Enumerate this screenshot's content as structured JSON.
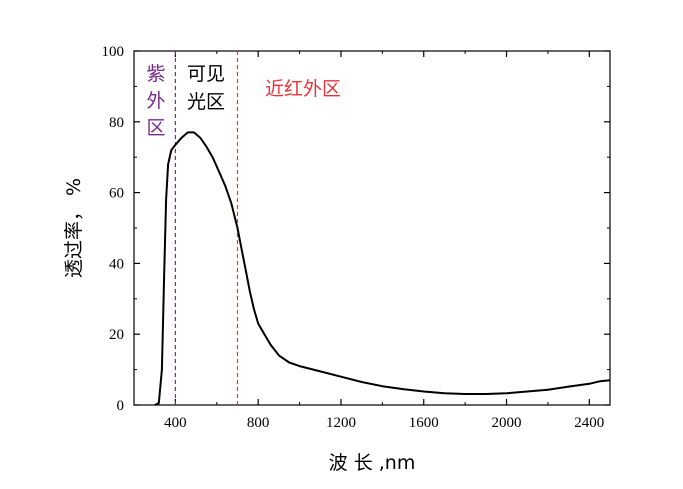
{
  "chart_data": {
    "type": "line",
    "xlabel": "波 长 ,nm",
    "ylabel": "透过率， %",
    "xlim": [
      200,
      2500
    ],
    "ylim": [
      0,
      100
    ],
    "xticks": [
      400,
      800,
      1200,
      1600,
      2000,
      2400
    ],
    "yticks": [
      0,
      20,
      40,
      60,
      80,
      100
    ],
    "grid": false,
    "series": [
      {
        "color": "#000000",
        "points": [
          [
            300,
            0
          ],
          [
            320,
            0.5
          ],
          [
            335,
            10
          ],
          [
            345,
            35
          ],
          [
            355,
            58
          ],
          [
            365,
            68
          ],
          [
            380,
            72
          ],
          [
            400,
            73.5
          ],
          [
            430,
            75.5
          ],
          [
            460,
            77
          ],
          [
            490,
            77
          ],
          [
            520,
            75.5
          ],
          [
            550,
            73
          ],
          [
            580,
            70
          ],
          [
            610,
            66
          ],
          [
            640,
            62
          ],
          [
            670,
            57
          ],
          [
            700,
            50
          ],
          [
            720,
            44
          ],
          [
            740,
            38
          ],
          [
            760,
            32
          ],
          [
            780,
            27
          ],
          [
            800,
            23
          ],
          [
            830,
            20
          ],
          [
            860,
            17
          ],
          [
            900,
            14
          ],
          [
            950,
            12
          ],
          [
            1000,
            11
          ],
          [
            1100,
            9.5
          ],
          [
            1200,
            8
          ],
          [
            1300,
            6.5
          ],
          [
            1400,
            5.3
          ],
          [
            1500,
            4.5
          ],
          [
            1600,
            3.8
          ],
          [
            1700,
            3.3
          ],
          [
            1800,
            3.1
          ],
          [
            1900,
            3.1
          ],
          [
            2000,
            3.3
          ],
          [
            2100,
            3.8
          ],
          [
            2200,
            4.3
          ],
          [
            2300,
            5.2
          ],
          [
            2400,
            6.0
          ],
          [
            2450,
            6.7
          ],
          [
            2500,
            7.0
          ]
        ]
      }
    ],
    "boundaries": [
      {
        "x": 400,
        "color": "#7a2a8f",
        "style": "dashed"
      },
      {
        "x": 700,
        "color": "#e8333b",
        "style": "dashed"
      }
    ],
    "region_labels": {
      "uv": {
        "lines": [
          "紫",
          "外",
          "区"
        ],
        "color": "#7a2a8f"
      },
      "visible": {
        "lines": [
          "可见",
          "光区"
        ],
        "color": "#000000"
      },
      "nir": {
        "text": "近红外区",
        "color": "#e8333b"
      }
    }
  }
}
